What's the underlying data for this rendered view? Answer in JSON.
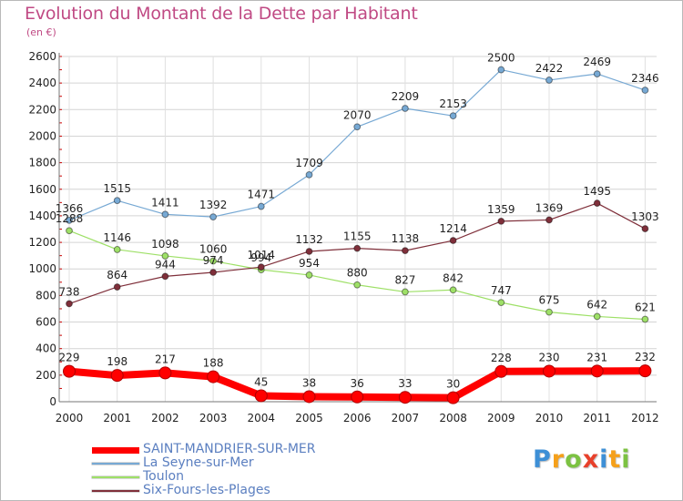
{
  "chart_data": {
    "type": "line",
    "title": "Evolution du Montant de la Dette par Habitant",
    "subtitle": "(en €)",
    "xlabel": "",
    "ylabel": "",
    "ylim": [
      0,
      2600
    ],
    "y_ticks": [
      "0",
      "200",
      "400",
      "600",
      "800",
      "1000",
      "1200",
      "1400",
      "1600",
      "1800",
      "2000",
      "2200",
      "2400",
      "2600"
    ],
    "categories": [
      "2000",
      "2001",
      "2002",
      "2003",
      "2004",
      "2005",
      "2006",
      "2007",
      "2008",
      "2009",
      "2010",
      "2011",
      "2012"
    ],
    "grid": true,
    "legend_position": "bottom-left",
    "series": [
      {
        "name": "SAINT-MANDRIER-SUR-MER",
        "color": "#ff0000",
        "highlight": true,
        "values": [
          229,
          198,
          217,
          188,
          45,
          38,
          36,
          33,
          30,
          228,
          230,
          231,
          232
        ]
      },
      {
        "name": "La Seyne-sur-Mer",
        "color": "#77a9d4",
        "highlight": false,
        "values": [
          1366,
          1515,
          1411,
          1392,
          1471,
          1709,
          2070,
          2209,
          2153,
          2500,
          2422,
          2469,
          2346
        ]
      },
      {
        "name": "Toulon",
        "color": "#9ee067",
        "highlight": false,
        "values": [
          1288,
          1146,
          1098,
          1060,
          994,
          954,
          880,
          827,
          842,
          747,
          675,
          642,
          621
        ]
      },
      {
        "name": "Six-Fours-les-Plages",
        "color": "#7f2f3a",
        "highlight": false,
        "values": [
          738,
          864,
          944,
          974,
          1014,
          1132,
          1155,
          1138,
          1214,
          1359,
          1369,
          1495,
          1303
        ]
      }
    ]
  },
  "brand": {
    "letters": [
      "P",
      "r",
      "o",
      "x",
      "i",
      "t",
      "i"
    ],
    "colors": [
      "#3d8fd6",
      "#f5a01a",
      "#7cc242",
      "#e8402b",
      "#3d8fd6",
      "#f5a01a",
      "#7cc242"
    ]
  }
}
